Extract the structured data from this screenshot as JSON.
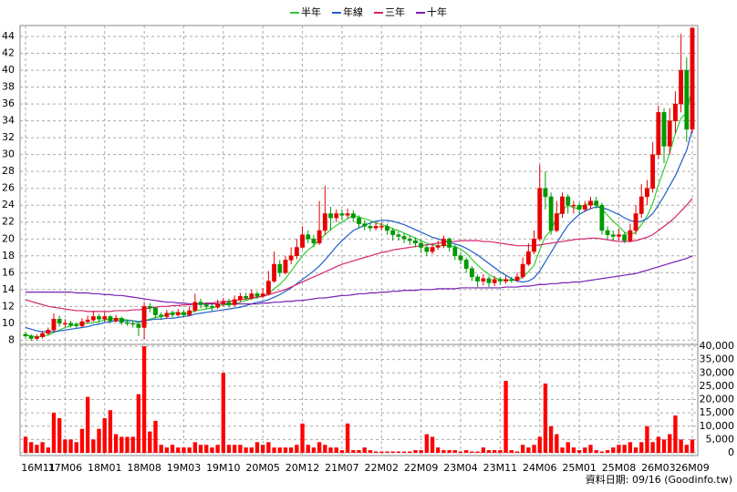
{
  "chart_data": {
    "type": "candlestick",
    "categories": [
      "16M11",
      null,
      null,
      null,
      null,
      null,
      null,
      "17M06",
      null,
      null,
      null,
      null,
      null,
      null,
      "18M01",
      null,
      null,
      null,
      null,
      null,
      null,
      "18M08",
      null,
      null,
      null,
      null,
      null,
      null,
      "19M03",
      null,
      null,
      null,
      null,
      null,
      null,
      "19M10",
      null,
      null,
      null,
      null,
      null,
      null,
      "20M05",
      null,
      null,
      null,
      null,
      null,
      null,
      "20M12",
      null,
      null,
      null,
      null,
      null,
      null,
      "21M07",
      null,
      null,
      null,
      null,
      null,
      null,
      "22M02",
      null,
      null,
      null,
      null,
      null,
      null,
      "22M09",
      null,
      null,
      null,
      null,
      null,
      null,
      "23M04",
      null,
      null,
      null,
      null,
      null,
      null,
      "23M11",
      null,
      null,
      null,
      null,
      null,
      null,
      "24M06",
      null,
      null,
      null,
      null,
      null,
      null,
      "25M01",
      null,
      null,
      null,
      null,
      null,
      null,
      "25M08",
      null,
      null,
      null,
      null,
      null,
      null,
      "26M03",
      null,
      null,
      null,
      null,
      null,
      "26M09"
    ],
    "open": [
      8.7,
      8.5,
      8.2,
      8.4,
      8.8,
      9.2,
      10.5,
      10.0,
      10.0,
      9.8,
      9.7,
      10.2,
      10.4,
      10.8,
      10.5,
      10.8,
      10.3,
      10.6,
      10.1,
      10.0,
      9.9,
      9.5,
      12.0,
      11.8,
      11.0,
      10.8,
      11.2,
      11.0,
      11.3,
      11.0,
      11.5,
      12.5,
      12.2,
      12.0,
      11.9,
      12.3,
      12.5,
      12.2,
      12.8,
      13.2,
      13.0,
      13.5,
      13.2,
      13.5,
      15.0,
      17.0,
      16.0,
      17.5,
      18.0,
      19.0,
      20.5,
      20.0,
      19.5,
      21.0,
      23.0,
      22.5,
      23.0,
      22.8,
      23.0,
      22.5,
      21.8,
      21.5,
      21.3,
      21.5,
      21.5,
      21.0,
      20.5,
      20.3,
      20.0,
      19.8,
      19.5,
      19.0,
      18.5,
      19.0,
      19.2,
      20.0,
      19.0,
      18.0,
      17.5,
      16.5,
      15.5,
      15.0,
      15.3,
      14.8,
      15.2,
      15.0,
      15.2,
      15.1,
      15.5,
      17.0,
      18.5,
      20.0,
      26.0,
      25.0,
      21.0,
      23.0,
      25.0,
      24.0,
      24.0,
      23.5,
      24.0,
      24.5,
      24.0,
      21.0,
      20.5,
      20.3,
      20.5,
      19.8,
      21.0,
      23.0,
      25.0,
      26.0,
      30.0,
      35.0,
      31.0,
      34.0,
      36.0,
      40.0,
      33.0
    ],
    "high": [
      9.0,
      8.7,
      8.7,
      9.1,
      9.5,
      11.2,
      10.9,
      10.5,
      10.3,
      10.1,
      10.6,
      10.9,
      11.5,
      11.1,
      11.3,
      11.0,
      11.0,
      10.8,
      10.4,
      10.3,
      10.1,
      12.5,
      12.4,
      12.0,
      11.3,
      11.6,
      11.5,
      11.7,
      11.6,
      12.0,
      13.5,
      12.9,
      12.5,
      12.3,
      12.8,
      13.0,
      12.9,
      13.3,
      13.6,
      13.6,
      14.0,
      13.8,
      14.2,
      16.2,
      18.5,
      17.5,
      18.0,
      19.0,
      20.0,
      21.5,
      21.0,
      20.5,
      24.5,
      26.3,
      23.8,
      23.5,
      23.5,
      23.6,
      23.4,
      22.8,
      22.2,
      21.9,
      22.0,
      22.0,
      21.8,
      21.3,
      20.9,
      20.7,
      20.4,
      20.2,
      19.8,
      19.3,
      19.5,
      19.8,
      20.4,
      20.2,
      19.3,
      18.4,
      17.8,
      16.8,
      15.8,
      15.8,
      15.6,
      15.6,
      15.5,
      15.6,
      15.5,
      16.0,
      17.8,
      19.5,
      21.0,
      28.8,
      28.0,
      25.5,
      24.5,
      25.5,
      25.3,
      24.5,
      24.3,
      24.5,
      25.0,
      25.0,
      24.3,
      21.5,
      21.0,
      21.2,
      20.8,
      21.8,
      24.0,
      26.5,
      27.0,
      31.5,
      35.8,
      35.5,
      35.5,
      37.5,
      44.3,
      41.5,
      45.0
    ],
    "low": [
      8.2,
      7.9,
      8.0,
      8.2,
      8.6,
      9.0,
      9.6,
      9.6,
      9.5,
      9.4,
      9.5,
      10.0,
      10.2,
      10.1,
      10.2,
      10.0,
      10.1,
      9.8,
      9.7,
      9.5,
      8.5,
      8.1,
      11.3,
      10.6,
      10.4,
      10.5,
      10.7,
      10.8,
      10.7,
      10.8,
      11.3,
      11.8,
      11.7,
      11.5,
      11.7,
      12.0,
      11.9,
      12.0,
      12.5,
      12.7,
      12.8,
      12.9,
      13.0,
      13.3,
      14.8,
      15.5,
      15.8,
      17.0,
      17.6,
      18.8,
      19.5,
      19.0,
      19.3,
      20.5,
      21.0,
      22.0,
      22.2,
      22.4,
      22.0,
      21.3,
      21.0,
      20.9,
      21.0,
      21.0,
      20.5,
      19.8,
      19.8,
      19.5,
      19.3,
      19.0,
      18.3,
      18.0,
      18.2,
      18.7,
      18.9,
      18.5,
      17.5,
      17.0,
      16.0,
      15.0,
      14.3,
      14.5,
      14.3,
      14.4,
      14.6,
      14.7,
      14.8,
      14.9,
      15.3,
      16.8,
      18.2,
      19.8,
      23.5,
      20.5,
      20.8,
      22.5,
      23.0,
      23.0,
      23.0,
      23.2,
      23.5,
      23.6,
      20.5,
      20.0,
      19.8,
      19.8,
      19.5,
      19.6,
      20.5,
      22.5,
      24.0,
      25.5,
      29.5,
      29.0,
      30.0,
      32.5,
      35.0,
      31.5,
      32.5
    ],
    "close": [
      8.5,
      8.2,
      8.4,
      8.8,
      9.2,
      10.5,
      10.0,
      10.0,
      9.8,
      9.7,
      10.2,
      10.4,
      10.8,
      10.5,
      10.8,
      10.3,
      10.6,
      10.1,
      10.0,
      9.9,
      9.5,
      12.0,
      11.8,
      11.0,
      10.8,
      11.2,
      11.0,
      11.3,
      11.0,
      11.5,
      12.5,
      12.2,
      12.0,
      11.9,
      12.3,
      12.5,
      12.2,
      12.8,
      13.2,
      13.0,
      13.5,
      13.2,
      13.5,
      15.0,
      17.0,
      16.0,
      17.5,
      18.0,
      19.0,
      20.5,
      20.0,
      19.5,
      21.0,
      23.0,
      22.5,
      23.0,
      22.8,
      23.0,
      22.5,
      21.8,
      21.5,
      21.3,
      21.5,
      21.5,
      21.0,
      20.5,
      20.3,
      20.0,
      19.8,
      19.5,
      19.0,
      18.5,
      19.0,
      19.2,
      20.0,
      19.0,
      18.0,
      17.5,
      16.5,
      15.5,
      15.0,
      15.3,
      14.8,
      15.2,
      15.0,
      15.2,
      15.1,
      15.5,
      17.0,
      18.5,
      20.0,
      26.0,
      25.0,
      21.0,
      23.0,
      25.0,
      24.0,
      24.0,
      23.5,
      24.0,
      24.5,
      24.0,
      21.0,
      20.5,
      20.3,
      20.5,
      19.8,
      21.0,
      23.0,
      25.0,
      26.0,
      30.0,
      35.0,
      31.0,
      34.0,
      36.0,
      40.0,
      33.0,
      45.0
    ],
    "up_color": "#e60000",
    "down_color": "#009900",
    "series": [
      {
        "name": "半年",
        "color": "#33cc33",
        "values": [
          8.6,
          8.5,
          8.4,
          8.5,
          8.6,
          8.9,
          9.2,
          9.5,
          9.7,
          9.9,
          10.0,
          10.0,
          10.1,
          10.2,
          10.4,
          10.5,
          10.6,
          10.5,
          10.4,
          10.3,
          10.1,
          10.3,
          10.5,
          10.7,
          10.8,
          11.0,
          11.3,
          11.2,
          11.1,
          11.2,
          11.5,
          11.6,
          11.7,
          11.8,
          12.0,
          12.2,
          12.2,
          12.3,
          12.5,
          12.7,
          12.9,
          13.1,
          13.2,
          13.5,
          14.1,
          14.6,
          15.3,
          16.2,
          17.1,
          18.0,
          18.7,
          19.2,
          19.9,
          20.5,
          21.1,
          21.6,
          22.0,
          22.4,
          22.8,
          22.6,
          22.4,
          22.2,
          21.9,
          21.7,
          21.5,
          21.2,
          21.0,
          20.7,
          20.4,
          20.1,
          19.8,
          19.5,
          19.3,
          19.2,
          19.2,
          19.2,
          19.1,
          18.8,
          18.3,
          17.6,
          16.9,
          16.3,
          15.8,
          15.4,
          15.2,
          15.1,
          15.1,
          15.1,
          15.5,
          16.1,
          16.9,
          18.7,
          20.3,
          21.0,
          22.6,
          23.4,
          24.0,
          23.7,
          23.6,
          24.1,
          24.2,
          24.0,
          23.6,
          22.8,
          22.1,
          21.5,
          20.8,
          20.5,
          20.8,
          21.7,
          22.7,
          24.2,
          26.4,
          28.3,
          30.2,
          32.5,
          34.3,
          35.0,
          38.0
        ]
      },
      {
        "name": "年線",
        "color": "#1e5fc8",
        "values": [
          9.5,
          9.3,
          9.1,
          9.0,
          9.0,
          9.0,
          9.1,
          9.2,
          9.3,
          9.4,
          9.5,
          9.6,
          9.8,
          9.9,
          10.1,
          10.2,
          10.3,
          10.3,
          10.3,
          10.3,
          10.2,
          10.3,
          10.4,
          10.5,
          10.5,
          10.6,
          10.6,
          10.7,
          10.8,
          10.9,
          11.1,
          11.2,
          11.3,
          11.4,
          11.5,
          11.6,
          11.7,
          11.8,
          11.9,
          12.1,
          12.3,
          12.5,
          12.6,
          12.8,
          13.1,
          13.4,
          13.8,
          14.2,
          14.7,
          15.2,
          15.7,
          16.2,
          16.8,
          17.5,
          18.3,
          19.1,
          19.8,
          20.4,
          21.0,
          21.3,
          21.6,
          21.9,
          22.1,
          22.2,
          22.2,
          22.1,
          21.9,
          21.7,
          21.4,
          21.1,
          20.8,
          20.5,
          20.2,
          20.0,
          19.8,
          19.6,
          19.4,
          19.2,
          18.9,
          18.5,
          18.1,
          17.6,
          17.1,
          16.6,
          16.1,
          15.7,
          15.3,
          15.0,
          14.9,
          15.0,
          15.4,
          16.2,
          17.3,
          18.4,
          19.5,
          20.6,
          21.6,
          22.3,
          22.9,
          23.3,
          23.6,
          23.8,
          23.7,
          23.5,
          23.2,
          22.9,
          22.5,
          22.2,
          22.0,
          22.1,
          22.4,
          23.0,
          24.0,
          25.1,
          26.3,
          27.5,
          29.0,
          30.5,
          33.0
        ]
      },
      {
        "name": "三年",
        "color": "#d6246e",
        "values": [
          12.8,
          12.6,
          12.4,
          12.2,
          12.0,
          11.9,
          11.8,
          11.7,
          11.6,
          11.5,
          11.5,
          11.4,
          11.4,
          11.4,
          11.4,
          11.4,
          11.5,
          11.5,
          11.5,
          11.6,
          11.6,
          11.7,
          11.8,
          11.9,
          12.0,
          12.0,
          12.1,
          12.1,
          12.2,
          12.2,
          12.3,
          12.3,
          12.4,
          12.4,
          12.5,
          12.6,
          12.6,
          12.7,
          12.8,
          12.9,
          13.0,
          13.1,
          13.2,
          13.4,
          13.6,
          13.8,
          14.0,
          14.3,
          14.6,
          14.9,
          15.2,
          15.5,
          15.8,
          16.1,
          16.4,
          16.7,
          17.0,
          17.2,
          17.4,
          17.6,
          17.8,
          18.0,
          18.2,
          18.4,
          18.5,
          18.7,
          18.8,
          18.9,
          19.0,
          19.1,
          19.2,
          19.3,
          19.4,
          19.5,
          19.6,
          19.7,
          19.7,
          19.8,
          19.8,
          19.8,
          19.8,
          19.7,
          19.7,
          19.6,
          19.5,
          19.4,
          19.3,
          19.2,
          19.2,
          19.2,
          19.2,
          19.3,
          19.4,
          19.5,
          19.6,
          19.7,
          19.8,
          19.9,
          20.0,
          20.0,
          20.1,
          20.1,
          20.0,
          19.9,
          19.8,
          19.7,
          19.7,
          19.7,
          19.8,
          20.0,
          20.2,
          20.5,
          21.0,
          21.5,
          22.0,
          22.6,
          23.3,
          24.0,
          24.8
        ]
      },
      {
        "name": "十年",
        "color": "#7a1fb0",
        "values": [
          13.7,
          13.7,
          13.7,
          13.7,
          13.7,
          13.7,
          13.7,
          13.7,
          13.7,
          13.6,
          13.6,
          13.6,
          13.5,
          13.5,
          13.4,
          13.4,
          13.3,
          13.3,
          13.2,
          13.1,
          13.0,
          12.9,
          12.8,
          12.7,
          12.6,
          12.5,
          12.5,
          12.4,
          12.4,
          12.3,
          12.3,
          12.3,
          12.3,
          12.3,
          12.3,
          12.3,
          12.3,
          12.3,
          12.3,
          12.3,
          12.3,
          12.3,
          12.4,
          12.4,
          12.5,
          12.5,
          12.6,
          12.6,
          12.7,
          12.7,
          12.8,
          12.9,
          13.0,
          13.0,
          13.1,
          13.2,
          13.3,
          13.3,
          13.4,
          13.5,
          13.5,
          13.6,
          13.6,
          13.7,
          13.7,
          13.8,
          13.8,
          13.9,
          13.9,
          13.9,
          14.0,
          14.0,
          14.0,
          14.1,
          14.1,
          14.1,
          14.1,
          14.2,
          14.2,
          14.2,
          14.2,
          14.2,
          14.2,
          14.2,
          14.2,
          14.3,
          14.3,
          14.3,
          14.4,
          14.4,
          14.5,
          14.6,
          14.6,
          14.7,
          14.7,
          14.8,
          14.8,
          14.9,
          14.9,
          15.0,
          15.1,
          15.2,
          15.3,
          15.4,
          15.5,
          15.6,
          15.7,
          15.8,
          15.9,
          16.1,
          16.3,
          16.5,
          16.7,
          16.9,
          17.1,
          17.3,
          17.5,
          17.7,
          18.0
        ]
      }
    ],
    "ylim": [
      7.5,
      45.3
    ],
    "yticks": [
      8,
      10,
      12,
      14,
      16,
      18,
      20,
      22,
      24,
      26,
      28,
      30,
      32,
      34,
      36,
      38,
      40,
      42,
      44
    ],
    "grid": true,
    "volume": {
      "type": "bar",
      "color": "#ff0000",
      "values": [
        6000,
        4000,
        3000,
        4000,
        2000,
        15000,
        13000,
        5000,
        5000,
        4000,
        9000,
        21000,
        5000,
        9000,
        13000,
        16000,
        7000,
        6000,
        6000,
        6000,
        22000,
        40000,
        8000,
        12000,
        3000,
        2000,
        3000,
        2000,
        2000,
        2000,
        4000,
        3000,
        3000,
        2000,
        3000,
        30000,
        3000,
        3000,
        3000,
        2000,
        2000,
        4000,
        3000,
        4000,
        2000,
        2000,
        2000,
        2000,
        3000,
        11000,
        3000,
        2000,
        4000,
        3000,
        2000,
        2000,
        1000,
        11000,
        1000,
        1000,
        2000,
        1000,
        500,
        500,
        500,
        500,
        500,
        500,
        500,
        1000,
        1000,
        7000,
        6000,
        2000,
        1000,
        1000,
        1000,
        500,
        1000,
        500,
        500,
        2000,
        1000,
        1000,
        1000,
        27000,
        1000,
        500,
        3000,
        2000,
        3000,
        6000,
        26000,
        10000,
        7000,
        2000,
        4000,
        2000,
        1000,
        2000,
        3000,
        1000,
        500,
        1000,
        2000,
        3000,
        3000,
        4000,
        2000,
        4000,
        10000,
        4000,
        6000,
        5000,
        7000,
        14000,
        5000,
        3000,
        5000
      ],
      "ylim": [
        0,
        40000
      ],
      "yticks": [
        0,
        {
          "value": 5000,
          "label": "5,000"
        },
        {
          "value": 10000,
          "label": "10,000"
        },
        {
          "value": 15000,
          "label": "15,000"
        },
        {
          "value": 20000,
          "label": "20,000"
        },
        {
          "value": 25000,
          "label": "25,000"
        },
        {
          "value": 30000,
          "label": "30,000"
        },
        {
          "value": 35000,
          "label": "35,000"
        },
        {
          "value": 40000,
          "label": "40,000"
        }
      ]
    },
    "note": "資料日期: 09/16 (Goodinfo.tw)"
  }
}
